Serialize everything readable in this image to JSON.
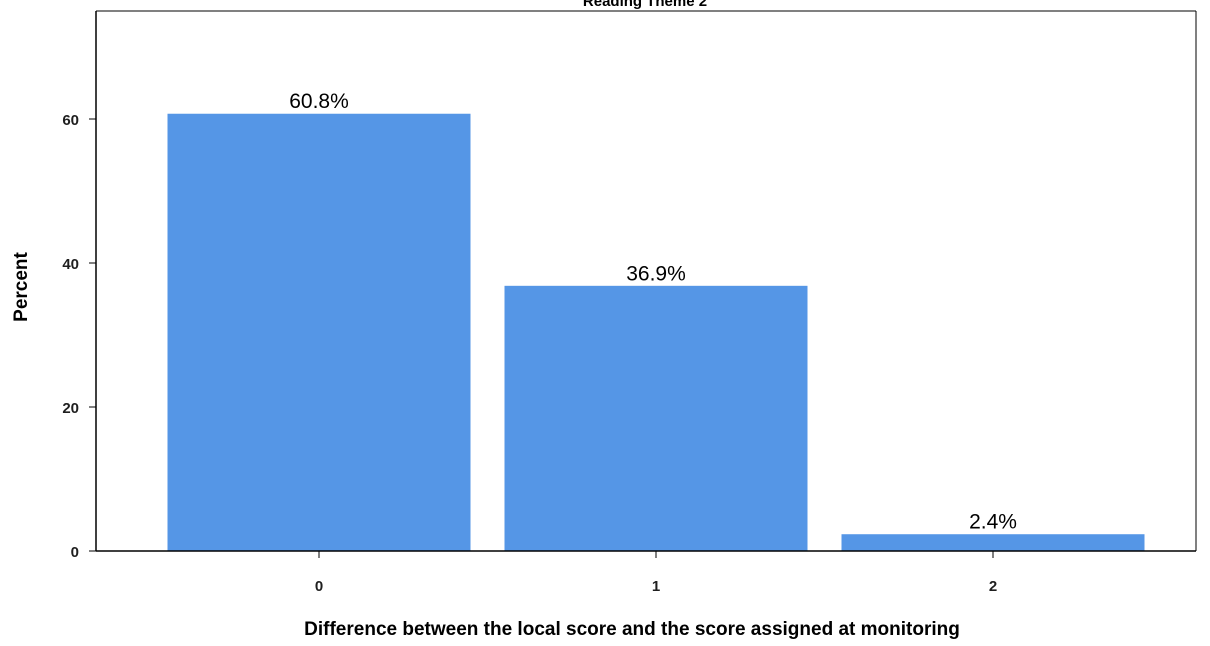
{
  "chart_data": {
    "type": "bar",
    "title": "Reading Theme 2",
    "xlabel": "Difference between the local score and the score assigned at monitoring",
    "ylabel": "Percent",
    "categories": [
      "0",
      "1",
      "2"
    ],
    "values": [
      60.8,
      36.9,
      2.4
    ],
    "data_labels": [
      "60.8%",
      "36.9%",
      "2.4%"
    ],
    "y_ticks": [
      0,
      20,
      40,
      60
    ],
    "y_tick_labels": [
      "0",
      "20",
      "40",
      "60"
    ],
    "ylim": [
      0,
      75
    ],
    "grid": false,
    "legend": "none",
    "bar_color": "#5596E6",
    "bar_edge_color": "#ffffff",
    "axis_color": "#000000"
  }
}
